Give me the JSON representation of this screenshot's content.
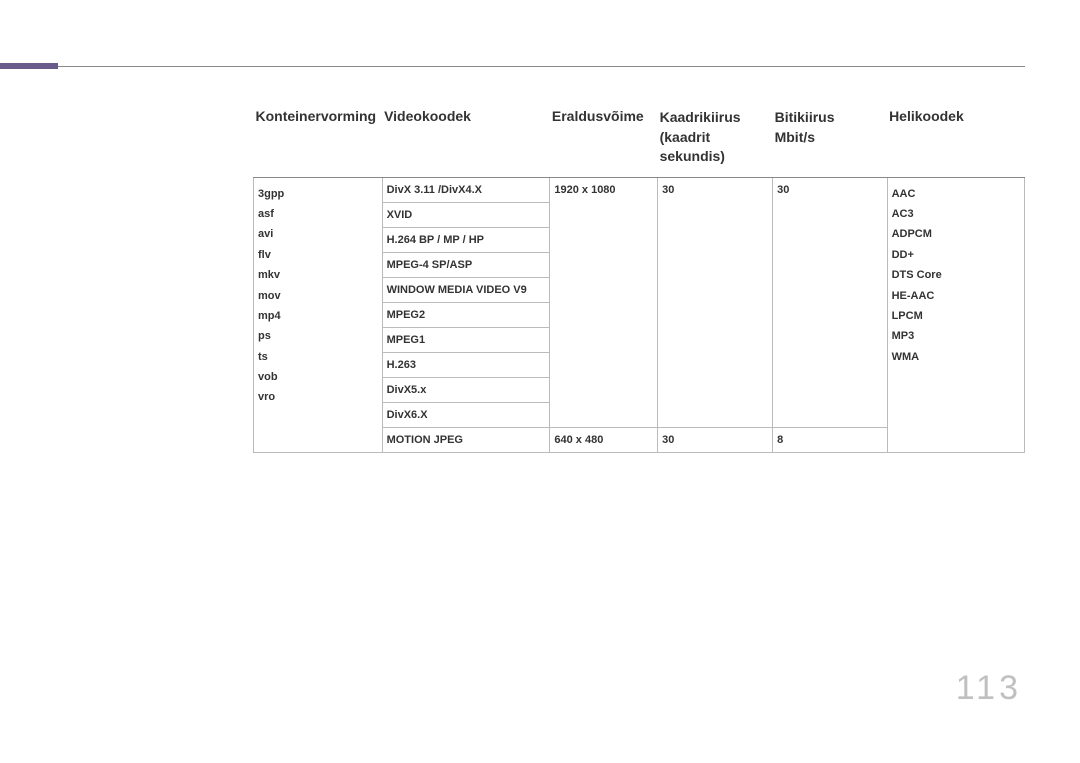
{
  "page_number": "113",
  "headers": {
    "col1": "Konteinervorming",
    "col2": "Videokoodek",
    "col3": "Eraldusvõime",
    "col4_line1": "Kaadrikiirus",
    "col4_line2": "(kaadrit sekundis)",
    "col5_line1": "Bitikiirus",
    "col5_line2": "Mbit/s",
    "col6": "Helikoodek"
  },
  "containers": [
    "3gpp",
    "asf",
    "avi",
    "flv",
    "mkv",
    "mov",
    "mp4",
    "ps",
    "ts",
    "vob",
    "vro"
  ],
  "video_codecs": {
    "r1": "DivX 3.11 /DivX4.X",
    "r2": "XVID",
    "r3": "H.264 BP / MP / HP",
    "r4": "MPEG-4 SP/ASP",
    "r5": "WINDOW MEDIA VIDEO V9",
    "r6": "MPEG2",
    "r7": "MPEG1",
    "r8": "H.263",
    "r9": "DivX5.x",
    "r10": "DivX6.X",
    "r11": "MOTION JPEG"
  },
  "resolution": {
    "main": "1920 x 1080",
    "alt": "640 x 480"
  },
  "framerate": {
    "main": "30",
    "alt": "30"
  },
  "bitrate": {
    "main": "30",
    "alt": "8"
  },
  "audio_codecs": [
    "AAC",
    "AC3",
    "ADPCM",
    "DD+",
    "DTS Core",
    "HE-AAC",
    "LPCM",
    "MP3",
    "WMA"
  ],
  "colors": {
    "accent": "#6b5b8c",
    "page_num": "#c0c0c0",
    "border": "#bbbbbb",
    "text": "#333333"
  }
}
